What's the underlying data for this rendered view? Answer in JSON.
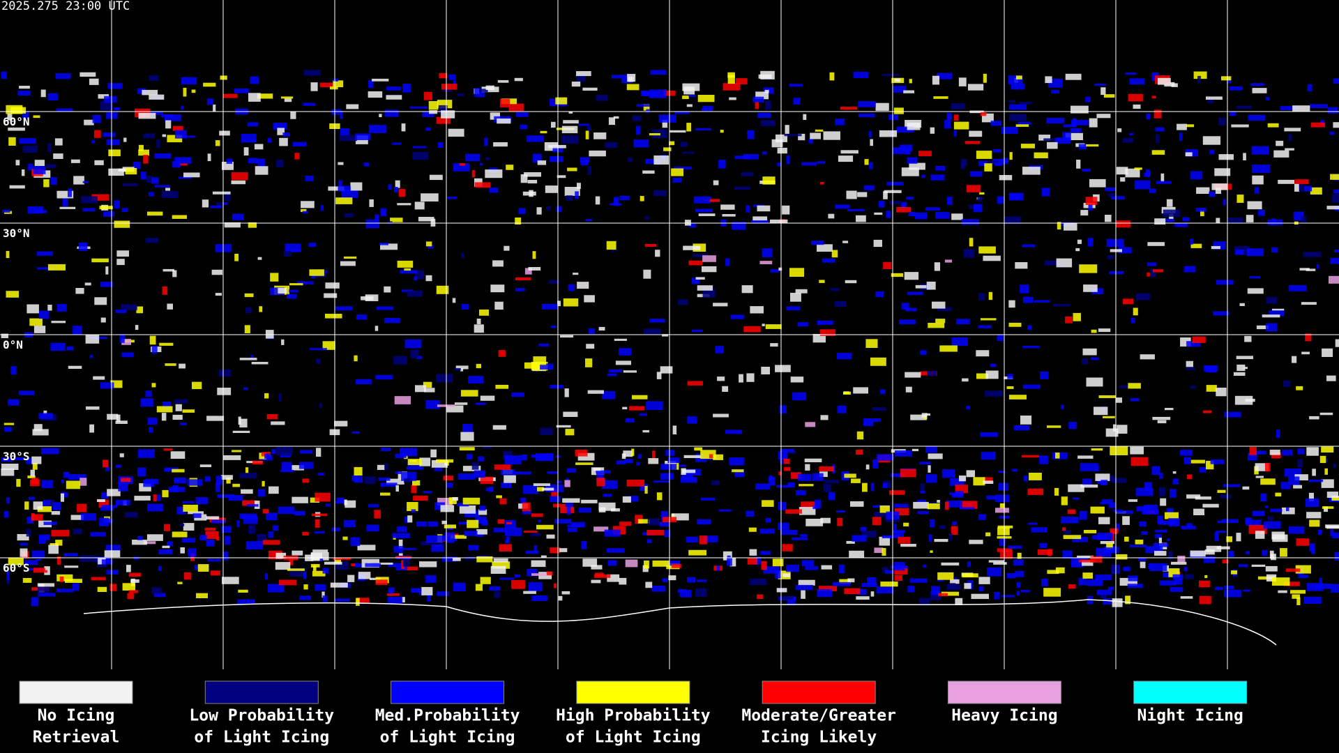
{
  "timestamp": "2025.275 23:00 UTC",
  "latitude_labels": [
    "60°N",
    "30°N",
    "0°N",
    "30°S",
    "60°S"
  ],
  "legend": [
    {
      "label": [
        "No Icing",
        "Retrieval"
      ],
      "color": "#f2f2f2"
    },
    {
      "label": [
        "Low Probability",
        "of Light Icing"
      ],
      "color": "#000080"
    },
    {
      "label": [
        "Med.Probability",
        "of Light Icing"
      ],
      "color": "#0000ff"
    },
    {
      "label": [
        "High Probability",
        "of Light Icing"
      ],
      "color": "#ffff00"
    },
    {
      "label": [
        "Moderate/Greater",
        "Icing Likely"
      ],
      "color": "#ff0000"
    },
    {
      "label": [
        "Heavy Icing"
      ],
      "color": "#e8a0e0"
    },
    {
      "label": [
        "Night Icing"
      ],
      "color": "#00ffff"
    }
  ]
}
